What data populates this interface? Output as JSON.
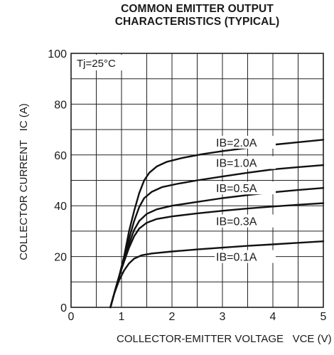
{
  "chart_data": {
    "type": "line",
    "title_lines": [
      "COMMON EMITTER OUTPUT",
      "CHARACTERISTICS (TYPICAL)"
    ],
    "xlabel": "COLLECTOR-EMITTER VOLTAGE",
    "xsymbol": "VCE (V)",
    "ylabel": "COLLECTOR CURRENT",
    "ysymbol": "IC (A)",
    "xlim": [
      0,
      5
    ],
    "ylim": [
      0,
      100
    ],
    "x_ticks": [
      "0",
      "1",
      "2",
      "3",
      "4",
      "5"
    ],
    "y_ticks": [
      "0",
      "20",
      "40",
      "60",
      "80",
      "100"
    ],
    "x_minor_step": 0.5,
    "y_minor_step": 10,
    "grid": true,
    "annotation": "Tj=25°C",
    "series": [
      {
        "name": "IB=2.0A",
        "label_at": [
          3.0,
          65
        ],
        "points": [
          [
            0.78,
            0
          ],
          [
            0.85,
            5
          ],
          [
            0.95,
            12
          ],
          [
            1.05,
            20
          ],
          [
            1.15,
            30
          ],
          [
            1.25,
            38
          ],
          [
            1.35,
            45
          ],
          [
            1.45,
            50
          ],
          [
            1.55,
            53
          ],
          [
            1.7,
            55.5
          ],
          [
            1.9,
            57.3
          ],
          [
            2.2,
            58.8
          ],
          [
            2.6,
            60.3
          ],
          [
            3.0,
            61.5
          ],
          [
            3.5,
            62.8
          ],
          [
            4.0,
            64.0
          ],
          [
            4.5,
            65.0
          ],
          [
            5.0,
            66.0
          ]
        ]
      },
      {
        "name": "IB=1.0A",
        "label_at": [
          3.0,
          57
        ],
        "points": [
          [
            0.78,
            0
          ],
          [
            0.85,
            5
          ],
          [
            0.95,
            12
          ],
          [
            1.05,
            19
          ],
          [
            1.15,
            27
          ],
          [
            1.25,
            34
          ],
          [
            1.35,
            39.5
          ],
          [
            1.45,
            43
          ],
          [
            1.6,
            45.5
          ],
          [
            1.8,
            47.3
          ],
          [
            2.1,
            48.6
          ],
          [
            2.5,
            50.0
          ],
          [
            3.0,
            51.5
          ],
          [
            3.5,
            53.0
          ],
          [
            4.0,
            54.3
          ],
          [
            4.5,
            55.2
          ],
          [
            5.0,
            56.0
          ]
        ]
      },
      {
        "name": "IB=0.5A",
        "label_at": [
          3.0,
          47
        ],
        "points": [
          [
            0.78,
            0
          ],
          [
            0.85,
            5
          ],
          [
            0.95,
            12
          ],
          [
            1.05,
            18.5
          ],
          [
            1.15,
            25
          ],
          [
            1.25,
            30.5
          ],
          [
            1.35,
            34
          ],
          [
            1.5,
            36.8
          ],
          [
            1.7,
            38.6
          ],
          [
            2.0,
            40.0
          ],
          [
            2.5,
            41.5
          ],
          [
            3.0,
            43.0
          ],
          [
            3.5,
            44.2
          ],
          [
            4.0,
            45.3
          ],
          [
            4.5,
            46.2
          ],
          [
            5.0,
            47.0
          ]
        ]
      },
      {
        "name": "IB=0.3A",
        "label_at": [
          3.0,
          34
        ],
        "points": [
          [
            0.78,
            0
          ],
          [
            0.85,
            5
          ],
          [
            0.95,
            12
          ],
          [
            1.05,
            18
          ],
          [
            1.15,
            23.5
          ],
          [
            1.25,
            28
          ],
          [
            1.35,
            31
          ],
          [
            1.5,
            33.3
          ],
          [
            1.7,
            34.8
          ],
          [
            2.0,
            35.8
          ],
          [
            2.5,
            37.0
          ],
          [
            3.0,
            38.0
          ],
          [
            3.5,
            38.9
          ],
          [
            4.0,
            39.7
          ],
          [
            4.5,
            40.4
          ],
          [
            5.0,
            41.0
          ]
        ]
      },
      {
        "name": "IB=0.1A",
        "label_at": [
          3.0,
          20
        ],
        "points": [
          [
            0.78,
            0
          ],
          [
            0.85,
            5
          ],
          [
            0.95,
            10.5
          ],
          [
            1.05,
            14.5
          ],
          [
            1.15,
            17.3
          ],
          [
            1.25,
            19.2
          ],
          [
            1.4,
            20.5
          ],
          [
            1.6,
            21.2
          ],
          [
            2.0,
            22.0
          ],
          [
            2.5,
            22.8
          ],
          [
            3.0,
            23.5
          ],
          [
            3.5,
            24.2
          ],
          [
            4.0,
            24.8
          ],
          [
            4.5,
            25.4
          ],
          [
            5.0,
            26.0
          ]
        ]
      }
    ]
  }
}
